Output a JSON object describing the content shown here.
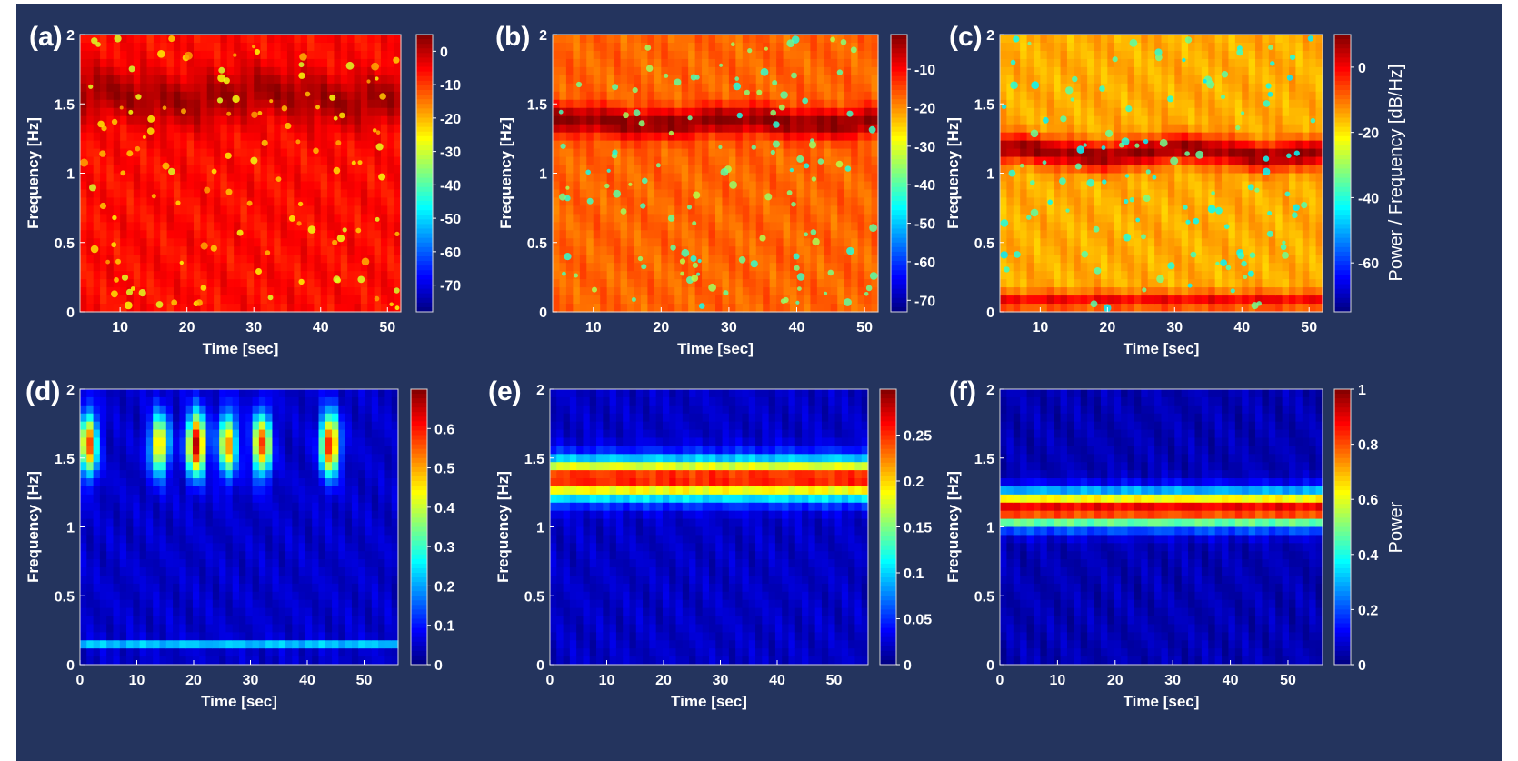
{
  "chart_data": [
    {
      "id": "a",
      "type": "heatmap",
      "panel_label": "(a)",
      "title": "",
      "xlabel": "Time [sec]",
      "ylabel": "Frequency [Hz]",
      "xlim": [
        4,
        52
      ],
      "ylim": [
        0,
        2
      ],
      "x_ticks": [
        10,
        20,
        30,
        40,
        50
      ],
      "y_ticks": [
        0,
        0.5,
        1,
        1.5,
        2
      ],
      "colorbar": {
        "range": [
          -78,
          5
        ],
        "ticks": [
          0,
          -10,
          -20,
          -30,
          -40,
          -50,
          -60,
          -70
        ],
        "label": ""
      },
      "bands": [
        {
          "center": 1.55,
          "width": 0.18,
          "value": 2,
          "wobble": 0.04
        }
      ],
      "background_value": -6,
      "dot_value": -30,
      "description_of_field": "broad high-power region with scattered low-power speckles"
    },
    {
      "id": "b",
      "type": "heatmap",
      "panel_label": "(b)",
      "title": "",
      "xlabel": "Time [sec]",
      "ylabel": "Frequency [Hz]",
      "xlim": [
        4,
        52
      ],
      "ylim": [
        0,
        2
      ],
      "x_ticks": [
        10,
        20,
        30,
        40,
        50
      ],
      "y_ticks": [
        0,
        0.5,
        1,
        1.5,
        2
      ],
      "colorbar": {
        "range": [
          -73,
          -1
        ],
        "ticks": [
          -10,
          -20,
          -30,
          -40,
          -50,
          -60,
          -70
        ],
        "label": ""
      },
      "bands": [
        {
          "center": 1.37,
          "width": 0.1,
          "value": -2,
          "wobble": 0.02
        }
      ],
      "background_value": -17,
      "dot_value": -45,
      "description_of_field": "narrow high-power band near 1.37 Hz"
    },
    {
      "id": "c",
      "type": "heatmap",
      "panel_label": "(c)",
      "title": "",
      "xlabel": "Time [sec]",
      "ylabel": "Frequency [Hz]",
      "xlim": [
        4,
        52
      ],
      "ylim": [
        0,
        2
      ],
      "x_ticks": [
        10,
        20,
        30,
        40,
        50
      ],
      "y_ticks": [
        0,
        0.5,
        1,
        1.5,
        2
      ],
      "colorbar": {
        "range": [
          -75,
          10
        ],
        "ticks": [
          0,
          -20,
          -40,
          -60
        ],
        "label": "Power / Frequency [dB/Hz]"
      },
      "bands": [
        {
          "center": 1.15,
          "width": 0.1,
          "value": 8,
          "wobble": 0.03
        },
        {
          "center": 0.08,
          "width": 0.06,
          "value": 0,
          "wobble": 0.0
        }
      ],
      "background_value": -15,
      "dot_value": -45,
      "description_of_field": "high-power band near 1.15 Hz"
    },
    {
      "id": "d",
      "type": "heatmap",
      "panel_label": "(d)",
      "title": "",
      "xlabel": "Time [sec]",
      "ylabel": "Frequency [Hz]",
      "xlim": [
        0,
        56
      ],
      "ylim": [
        0,
        2
      ],
      "x_ticks": [
        0,
        10,
        20,
        30,
        40,
        50
      ],
      "y_ticks": [
        0,
        0.5,
        1,
        1.5,
        2
      ],
      "colorbar": {
        "range": [
          0,
          0.7
        ],
        "ticks": [
          0,
          0.1,
          0.2,
          0.3,
          0.4,
          0.5,
          0.6
        ],
        "label": ""
      },
      "blobs": [
        {
          "t": 1.5,
          "f": 1.6,
          "value": 0.55
        },
        {
          "t": 14,
          "f": 1.6,
          "value": 0.5
        },
        {
          "t": 20.5,
          "f": 1.6,
          "value": 0.68
        },
        {
          "t": 26,
          "f": 1.6,
          "value": 0.5
        },
        {
          "t": 32,
          "f": 1.6,
          "value": 0.58
        },
        {
          "t": 44,
          "f": 1.6,
          "value": 0.62
        }
      ],
      "lines": [
        {
          "f": 0.15,
          "value": 0.22
        }
      ],
      "background_value": 0.05,
      "description_of_field": "wavelet power with bursts near 1.6 Hz"
    },
    {
      "id": "e",
      "type": "heatmap",
      "panel_label": "(e)",
      "title": "",
      "xlabel": "Time [sec]",
      "ylabel": "Frequency [Hz]",
      "xlim": [
        0,
        56
      ],
      "ylim": [
        0,
        2
      ],
      "x_ticks": [
        0,
        10,
        20,
        30,
        40,
        50
      ],
      "y_ticks": [
        0,
        0.5,
        1,
        1.5,
        2
      ],
      "colorbar": {
        "range": [
          0,
          0.3
        ],
        "ticks": [
          0,
          0.05,
          0.1,
          0.15,
          0.2,
          0.25
        ],
        "label": ""
      },
      "bands": [
        {
          "center": 1.35,
          "width": 0.14,
          "value": 0.26,
          "wobble": 0.0
        }
      ],
      "background_value": 0.02,
      "description_of_field": "wavelet power concentrated near 1.35 Hz"
    },
    {
      "id": "f",
      "type": "heatmap",
      "panel_label": "(f)",
      "title": "",
      "xlabel": "Time [sec]",
      "ylabel": "Frequency [Hz]",
      "xlim": [
        0,
        56
      ],
      "ylim": [
        0,
        2
      ],
      "x_ticks": [
        0,
        10,
        20,
        30,
        40,
        50
      ],
      "y_ticks": [
        0,
        0.5,
        1,
        1.5,
        2
      ],
      "colorbar": {
        "range": [
          0,
          1
        ],
        "ticks": [
          0,
          0.2,
          0.4,
          0.6,
          0.8,
          1
        ],
        "label": "Power"
      },
      "bands": [
        {
          "center": 1.13,
          "width": 0.12,
          "value": 0.9,
          "wobble": 0.0
        }
      ],
      "background_value": 0.05,
      "description_of_field": "wavelet power concentrated near 1.13 Hz"
    }
  ]
}
